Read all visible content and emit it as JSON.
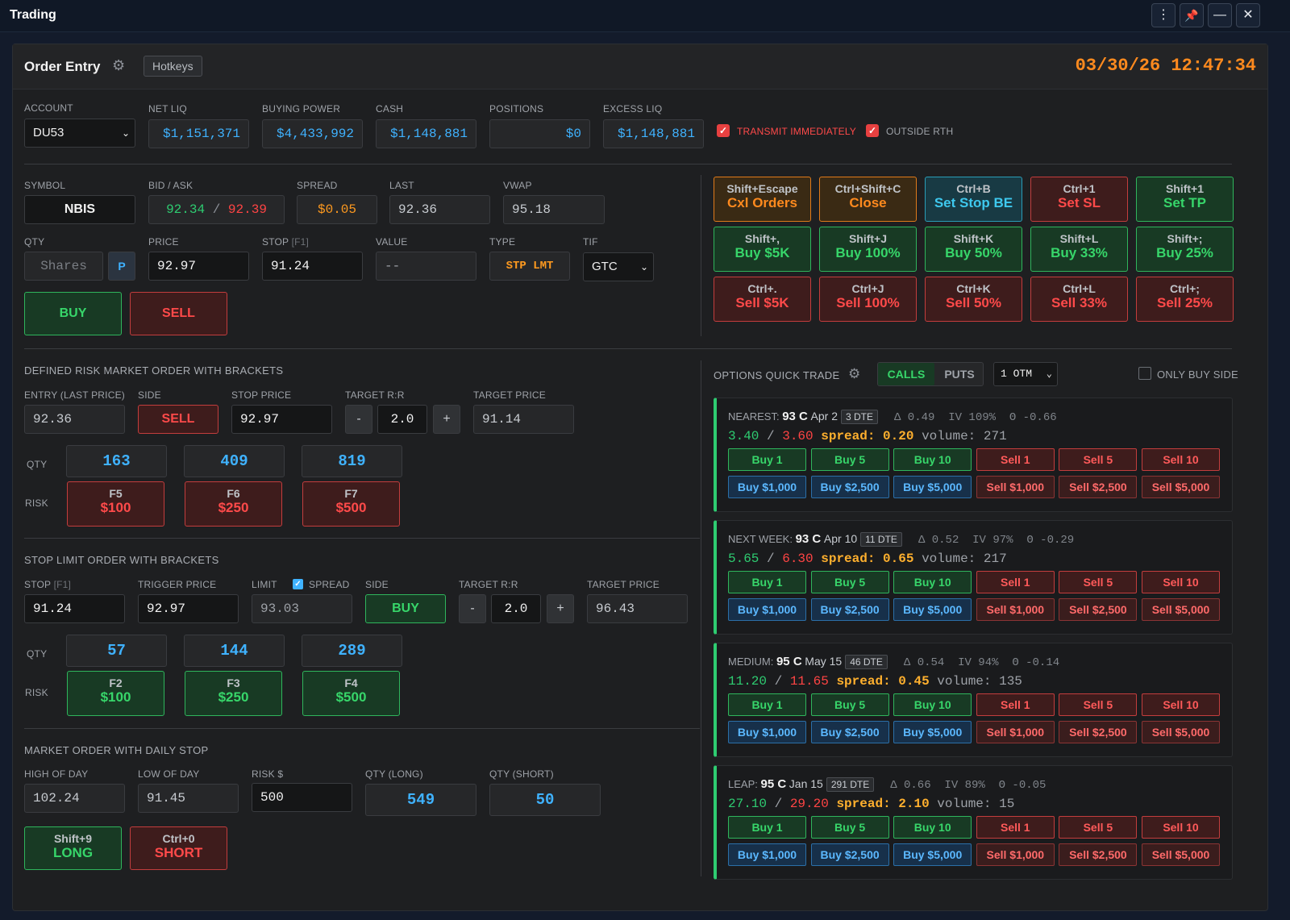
{
  "window": {
    "title": "Trading",
    "controls": [
      "⋮",
      "📌",
      "—",
      "✕"
    ]
  },
  "header": {
    "title": "Order Entry",
    "hotkeys_label": "Hotkeys",
    "datetime": "03/30/26 12:47:34"
  },
  "account": {
    "account_label": "ACCOUNT",
    "account_value": "DU53",
    "net_liq_label": "NET LIQ",
    "net_liq": "$1,151,371",
    "buying_power_label": "BUYING POWER",
    "buying_power": "$4,433,992",
    "cash_label": "CASH",
    "cash": "$1,148,881",
    "positions_label": "POSITIONS",
    "positions": "$0",
    "excess_liq_label": "EXCESS LIQ",
    "excess_liq": "$1,148,881",
    "transmit_label": "TRANSMIT IMMEDIATELY",
    "outside_rth_label": "OUTSIDE RTH"
  },
  "quote": {
    "symbol_label": "SYMBOL",
    "symbol": "NBIS",
    "bidask_label": "BID / ASK",
    "bid": "92.34",
    "sep": " / ",
    "ask": "92.39",
    "spread_label": "SPREAD",
    "spread": "$0.05",
    "last_label": "LAST",
    "last": "92.36",
    "vwap_label": "VWAP",
    "vwap": "95.18"
  },
  "order": {
    "qty_label": "QTY",
    "qty_placeholder": "Shares",
    "p_label": "P",
    "price_label": "PRICE",
    "price": "92.97",
    "stop_label": "STOP",
    "stop_key": "[F1]",
    "stop": "91.24",
    "value_label": "VALUE",
    "value": "--",
    "type_label": "TYPE",
    "type": "STP LMT",
    "tif_label": "TIF",
    "tif": "GTC",
    "buy_label": "BUY",
    "sell_label": "SELL"
  },
  "hotkeys": [
    [
      {
        "k": "Shift+Escape",
        "a": "Cxl Orders",
        "c": "bo"
      },
      {
        "k": "Ctrl+Shift+C",
        "a": "Close",
        "c": "bo"
      },
      {
        "k": "Ctrl+B",
        "a": "Set Stop BE",
        "c": "bc"
      },
      {
        "k": "Ctrl+1",
        "a": "Set SL",
        "c": "br"
      },
      {
        "k": "Shift+1",
        "a": "Set TP",
        "c": "bg"
      }
    ],
    [
      {
        "k": "Shift+,",
        "a": "Buy $5K",
        "c": "bg"
      },
      {
        "k": "Shift+J",
        "a": "Buy 100%",
        "c": "bg"
      },
      {
        "k": "Shift+K",
        "a": "Buy 50%",
        "c": "bg"
      },
      {
        "k": "Shift+L",
        "a": "Buy 33%",
        "c": "bg"
      },
      {
        "k": "Shift+;",
        "a": "Buy 25%",
        "c": "bg"
      }
    ],
    [
      {
        "k": "Ctrl+.",
        "a": "Sell $5K",
        "c": "br"
      },
      {
        "k": "Ctrl+J",
        "a": "Sell 100%",
        "c": "br"
      },
      {
        "k": "Ctrl+K",
        "a": "Sell 50%",
        "c": "br"
      },
      {
        "k": "Ctrl+L",
        "a": "Sell 33%",
        "c": "br"
      },
      {
        "k": "Ctrl+;",
        "a": "Sell 25%",
        "c": "br"
      }
    ]
  ],
  "defined_risk": {
    "title": "DEFINED RISK MARKET ORDER WITH BRACKETS",
    "entry_label": "ENTRY (LAST PRICE)",
    "entry": "92.36",
    "side_label": "SIDE",
    "side": "SELL",
    "stop_price_label": "STOP PRICE",
    "stop_price": "92.97",
    "rr_label": "TARGET R:R",
    "rr": "2.0",
    "minus": "-",
    "plus": "+",
    "target_label": "TARGET PRICE",
    "target": "91.14",
    "qty_label": "QTY",
    "risk_label": "RISK",
    "qtys": [
      "163",
      "409",
      "819"
    ],
    "risks": [
      {
        "k": "F5",
        "a": "$100"
      },
      {
        "k": "F6",
        "a": "$250"
      },
      {
        "k": "F7",
        "a": "$500"
      }
    ]
  },
  "stop_limit": {
    "title": "STOP LIMIT ORDER WITH BRACKETS",
    "stop_label": "STOP",
    "stop_key": "[F1]",
    "stop": "91.24",
    "trigger_label": "TRIGGER PRICE",
    "trigger": "92.97",
    "limit_label": "LIMIT",
    "spread_label": "SPREAD",
    "limit": "93.03",
    "side_label": "SIDE",
    "side": "BUY",
    "rr_label": "TARGET R:R",
    "rr": "2.0",
    "minus": "-",
    "plus": "+",
    "target_label": "TARGET PRICE",
    "target": "96.43",
    "qty_label": "QTY",
    "risk_label": "RISK",
    "qtys": [
      "57",
      "144",
      "289"
    ],
    "risks": [
      {
        "k": "F2",
        "a": "$100"
      },
      {
        "k": "F3",
        "a": "$250"
      },
      {
        "k": "F4",
        "a": "$500"
      }
    ]
  },
  "daily_stop": {
    "title": "MARKET ORDER WITH DAILY STOP",
    "hod_label": "HIGH OF DAY",
    "hod": "102.24",
    "lod_label": "LOW OF DAY",
    "lod": "91.45",
    "risk_label": "RISK $",
    "risk": "500",
    "qty_long_label": "QTY (LONG)",
    "qty_long": "549",
    "qty_short_label": "QTY (SHORT)",
    "qty_short": "50",
    "long_key": "Shift+9",
    "long": "LONG",
    "short_key": "Ctrl+0",
    "short": "SHORT"
  },
  "options": {
    "title": "OPTIONS QUICK TRADE",
    "calls": "CALLS",
    "puts": "PUTS",
    "otm": "1 OTM",
    "only_buy": "ONLY BUY SIDE",
    "cards": [
      {
        "tier": "NEAREST:",
        "strike": "93 C",
        "exp": "Apr 2",
        "dte": "3 DTE",
        "greeks": "Δ 0.49  IV 109%  Θ -0.66",
        "bid": "3.40",
        "ask": "3.60",
        "spread": "spread: 0.20",
        "volume": "volume: 271"
      },
      {
        "tier": "NEXT WEEK:",
        "strike": "93 C",
        "exp": "Apr 10",
        "dte": "11 DTE",
        "greeks": "Δ 0.52  IV 97%  Θ -0.29",
        "bid": "5.65",
        "ask": "6.30",
        "spread": "spread: 0.65",
        "volume": "volume: 217"
      },
      {
        "tier": "MEDIUM:",
        "strike": "95 C",
        "exp": "May 15",
        "dte": "46 DTE",
        "greeks": "Δ 0.54  IV 94%  Θ -0.14",
        "bid": "11.20",
        "ask": "11.65",
        "spread": "spread: 0.45",
        "volume": "volume: 135"
      },
      {
        "tier": "LEAP:",
        "strike": "95 C",
        "exp": "Jan 15",
        "dte": "291 DTE",
        "greeks": "Δ 0.66  IV 89%  Θ -0.05",
        "bid": "27.10",
        "ask": "29.20",
        "spread": "spread: 2.10",
        "volume": "volume: 15"
      }
    ],
    "row1": [
      "Buy 1",
      "Buy 5",
      "Buy 10",
      "Sell 1",
      "Sell 5",
      "Sell 10"
    ],
    "row2": [
      "Buy $1,000",
      "Buy $2,500",
      "Buy $5,000",
      "Sell $1,000",
      "Sell $2,500",
      "Sell $5,000"
    ]
  }
}
